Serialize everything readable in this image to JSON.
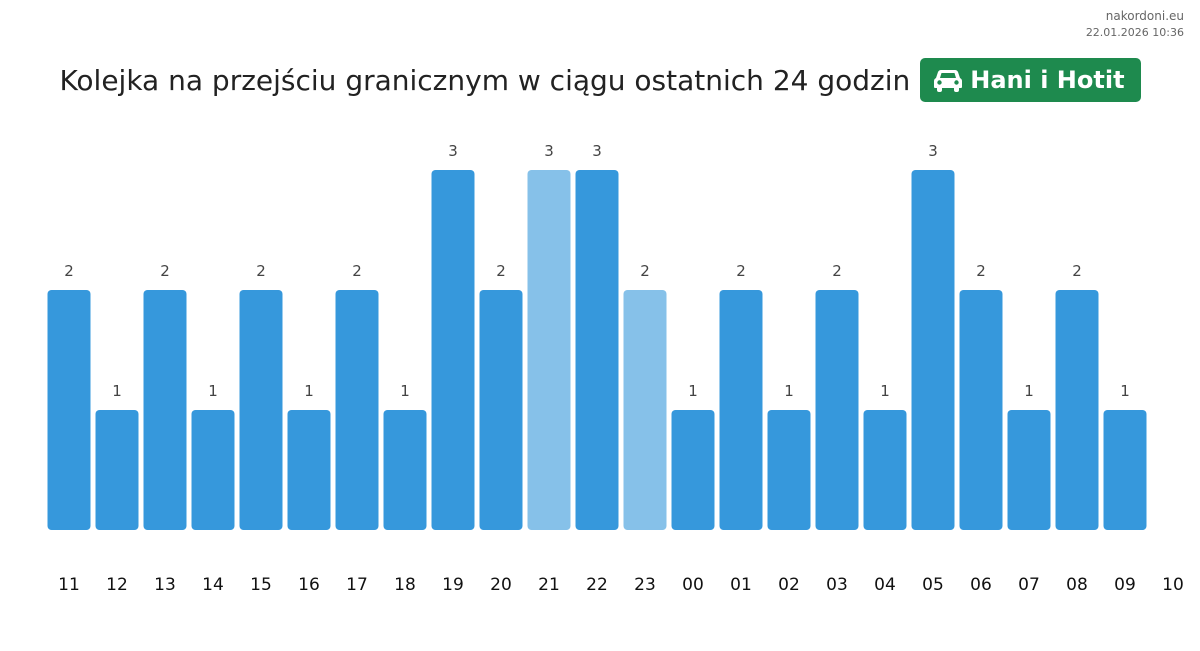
{
  "site": "nakordoni.eu",
  "timestamp": "22.01.2026 10:36",
  "title": "Kolejka na przejściu granicznym w ciągu ostatnich 24 godzin",
  "crossing": {
    "name": "Hani i Hotit",
    "icon": "car-icon",
    "color": "#1e8a4e"
  },
  "colors": {
    "bar": "#3698dc",
    "bar_highlight": "#86c1e9",
    "value_label": "#444444",
    "tick_label": "#111111"
  },
  "chart_data": {
    "type": "bar",
    "categories": [
      "11",
      "12",
      "13",
      "14",
      "15",
      "16",
      "17",
      "18",
      "19",
      "20",
      "21",
      "22",
      "23",
      "00",
      "01",
      "02",
      "03",
      "04",
      "05",
      "06",
      "07",
      "08",
      "09"
    ],
    "values": [
      2,
      1,
      2,
      1,
      2,
      1,
      2,
      1,
      3,
      2,
      3,
      3,
      2,
      1,
      2,
      1,
      2,
      1,
      3,
      2,
      1,
      2,
      1
    ],
    "highlighted": [
      "21",
      "23"
    ],
    "extra_tick": "10",
    "ylim": [
      0,
      3
    ],
    "grid": false,
    "legend": false,
    "title": "",
    "xlabel": "",
    "ylabel": ""
  }
}
